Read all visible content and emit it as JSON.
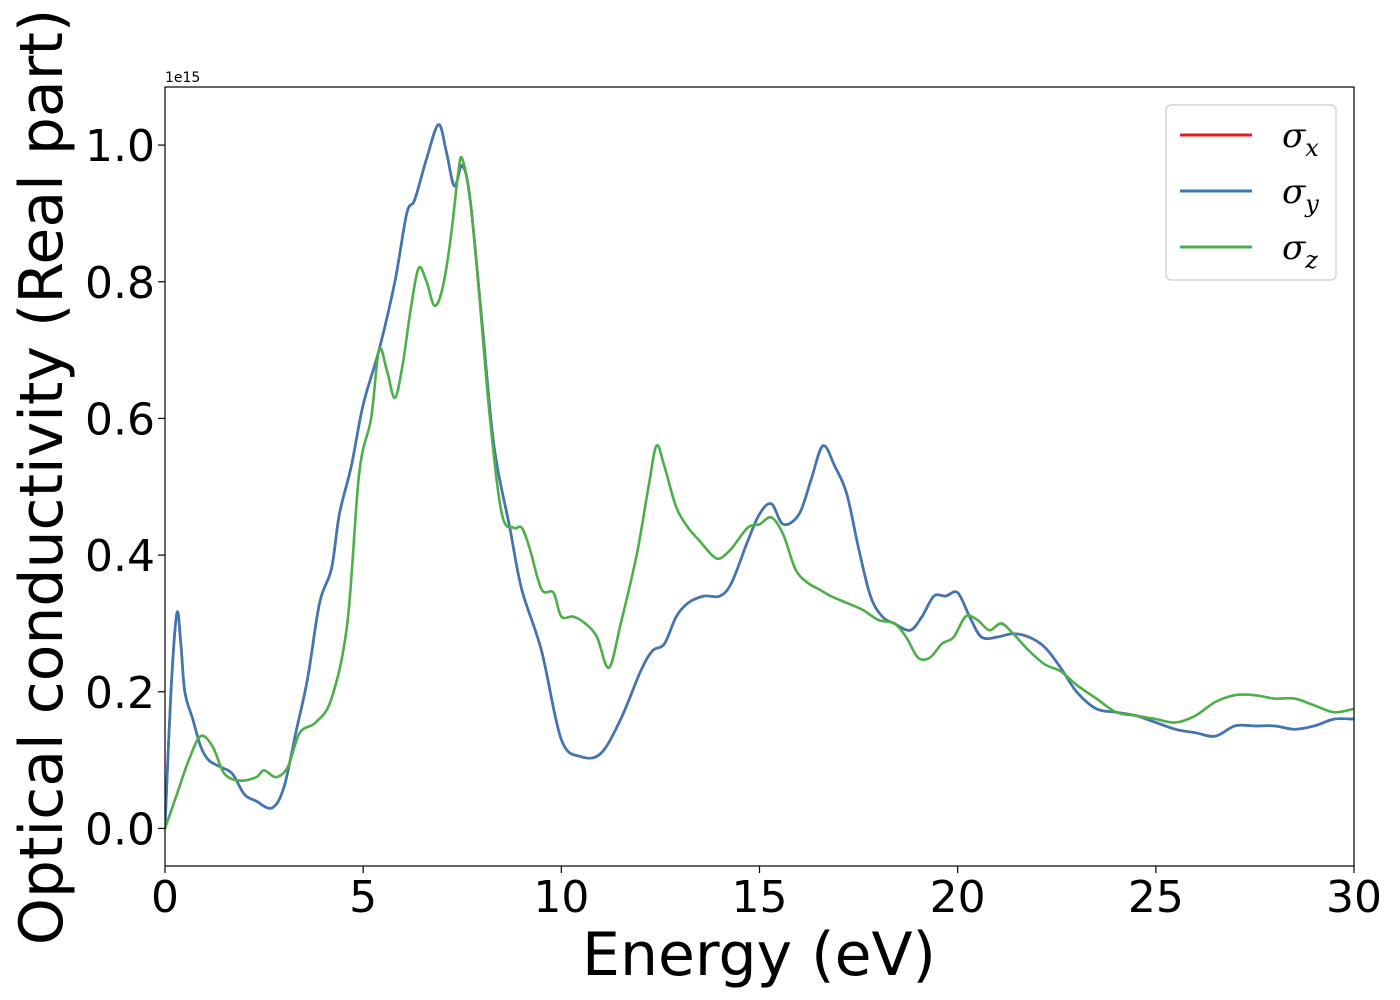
{
  "chart_data": {
    "type": "line",
    "xlabel": "Energy (eV)",
    "ylabel": "Optical conductivity (Real part)",
    "y_offset_label": "1e15",
    "xlim": [
      0,
      30
    ],
    "ylim": [
      -0.055,
      1.085
    ],
    "x_ticks": [
      0,
      5,
      10,
      15,
      20,
      25,
      30
    ],
    "x_tick_labels": [
      "0",
      "5",
      "10",
      "15",
      "20",
      "25",
      "30"
    ],
    "y_ticks": [
      0.0,
      0.2,
      0.4,
      0.6,
      0.8,
      1.0
    ],
    "y_tick_labels": [
      "0.0",
      "0.2",
      "0.4",
      "0.6",
      "0.8",
      "1.0"
    ],
    "grid": false,
    "legend_position": "top-right",
    "series": [
      {
        "name": "σx",
        "symbol": "σ",
        "subscript": "x",
        "color": "#e41a1c",
        "x": [
          0,
          0.15,
          0.3,
          0.4,
          0.5,
          0.7,
          0.9,
          1.1,
          1.4,
          1.7,
          2.0,
          2.3,
          2.7,
          3.0,
          3.3,
          3.6,
          3.9,
          4.2,
          4.4,
          4.7,
          5.0,
          5.4,
          5.8,
          6.1,
          6.3,
          6.6,
          6.9,
          7.1,
          7.3,
          7.5,
          7.7,
          8.0,
          8.3,
          8.7,
          9.0,
          9.5,
          10.0,
          10.5,
          11.0,
          11.5,
          12.0,
          12.3,
          12.6,
          12.9,
          13.2,
          13.6,
          14.0,
          14.3,
          14.7,
          15.0,
          15.3,
          15.6,
          16.0,
          16.3,
          16.6,
          16.9,
          17.2,
          17.5,
          17.8,
          18.1,
          18.4,
          18.8,
          19.1,
          19.4,
          19.7,
          20.0,
          20.3,
          20.6,
          21.0,
          21.4,
          21.8,
          22.2,
          22.6,
          23.0,
          23.5,
          24.0,
          24.5,
          25.0,
          25.5,
          26.0,
          26.5,
          27.0,
          27.5,
          28.0,
          28.5,
          29.0,
          29.5,
          30.0
        ],
        "y": [
          0.0,
          0.2,
          0.315,
          0.27,
          0.2,
          0.16,
          0.12,
          0.1,
          0.09,
          0.08,
          0.05,
          0.04,
          0.03,
          0.06,
          0.14,
          0.22,
          0.33,
          0.38,
          0.46,
          0.53,
          0.62,
          0.7,
          0.8,
          0.9,
          0.92,
          0.98,
          1.03,
          0.99,
          0.94,
          0.97,
          0.92,
          0.74,
          0.56,
          0.44,
          0.35,
          0.26,
          0.13,
          0.105,
          0.11,
          0.16,
          0.23,
          0.26,
          0.27,
          0.31,
          0.33,
          0.34,
          0.34,
          0.36,
          0.42,
          0.46,
          0.475,
          0.445,
          0.46,
          0.51,
          0.56,
          0.53,
          0.49,
          0.41,
          0.34,
          0.31,
          0.3,
          0.29,
          0.31,
          0.34,
          0.34,
          0.345,
          0.31,
          0.28,
          0.28,
          0.285,
          0.28,
          0.265,
          0.235,
          0.2,
          0.175,
          0.17,
          0.165,
          0.155,
          0.145,
          0.14,
          0.135,
          0.15,
          0.15,
          0.15,
          0.145,
          0.15,
          0.16,
          0.16
        ]
      },
      {
        "name": "σy",
        "symbol": "σ",
        "subscript": "y",
        "color": "#3c78b5",
        "x": [
          0,
          0.15,
          0.3,
          0.4,
          0.5,
          0.7,
          0.9,
          1.1,
          1.4,
          1.7,
          2.0,
          2.3,
          2.7,
          3.0,
          3.3,
          3.6,
          3.9,
          4.2,
          4.4,
          4.7,
          5.0,
          5.4,
          5.8,
          6.1,
          6.3,
          6.6,
          6.9,
          7.1,
          7.3,
          7.5,
          7.7,
          8.0,
          8.3,
          8.7,
          9.0,
          9.5,
          10.0,
          10.5,
          11.0,
          11.5,
          12.0,
          12.3,
          12.6,
          12.9,
          13.2,
          13.6,
          14.0,
          14.3,
          14.7,
          15.0,
          15.3,
          15.6,
          16.0,
          16.3,
          16.6,
          16.9,
          17.2,
          17.5,
          17.8,
          18.1,
          18.4,
          18.8,
          19.1,
          19.4,
          19.7,
          20.0,
          20.3,
          20.6,
          21.0,
          21.4,
          21.8,
          22.2,
          22.6,
          23.0,
          23.5,
          24.0,
          24.5,
          25.0,
          25.5,
          26.0,
          26.5,
          27.0,
          27.5,
          28.0,
          28.5,
          29.0,
          29.5,
          30.0
        ],
        "y": [
          0.0,
          0.2,
          0.315,
          0.27,
          0.2,
          0.16,
          0.12,
          0.1,
          0.09,
          0.08,
          0.05,
          0.04,
          0.03,
          0.06,
          0.14,
          0.22,
          0.33,
          0.38,
          0.46,
          0.53,
          0.62,
          0.7,
          0.8,
          0.9,
          0.92,
          0.98,
          1.03,
          0.99,
          0.94,
          0.97,
          0.92,
          0.74,
          0.56,
          0.44,
          0.35,
          0.26,
          0.13,
          0.105,
          0.11,
          0.16,
          0.23,
          0.26,
          0.27,
          0.31,
          0.33,
          0.34,
          0.34,
          0.36,
          0.42,
          0.46,
          0.475,
          0.445,
          0.46,
          0.51,
          0.56,
          0.53,
          0.49,
          0.41,
          0.34,
          0.31,
          0.3,
          0.29,
          0.31,
          0.34,
          0.34,
          0.345,
          0.31,
          0.28,
          0.28,
          0.285,
          0.28,
          0.265,
          0.235,
          0.2,
          0.175,
          0.17,
          0.165,
          0.155,
          0.145,
          0.14,
          0.135,
          0.15,
          0.15,
          0.15,
          0.145,
          0.15,
          0.16,
          0.16
        ]
      },
      {
        "name": "σz",
        "symbol": "σ",
        "subscript": "z",
        "color": "#4daf4a",
        "x": [
          0,
          0.3,
          0.6,
          0.9,
          1.2,
          1.5,
          1.9,
          2.3,
          2.5,
          2.8,
          3.1,
          3.4,
          3.8,
          4.2,
          4.6,
          4.9,
          5.2,
          5.4,
          5.6,
          5.8,
          6.0,
          6.2,
          6.4,
          6.6,
          6.8,
          7.0,
          7.2,
          7.4,
          7.5,
          7.7,
          7.9,
          8.2,
          8.5,
          8.8,
          9.0,
          9.2,
          9.5,
          9.8,
          10.0,
          10.3,
          10.6,
          10.9,
          11.2,
          11.5,
          11.9,
          12.2,
          12.4,
          12.6,
          12.9,
          13.2,
          13.5,
          13.8,
          14.0,
          14.3,
          14.7,
          15.0,
          15.3,
          15.6,
          15.9,
          16.2,
          16.5,
          16.8,
          17.2,
          17.6,
          18.0,
          18.4,
          18.7,
          19.0,
          19.3,
          19.6,
          19.9,
          20.2,
          20.5,
          20.8,
          21.1,
          21.4,
          21.8,
          22.2,
          22.6,
          23.0,
          23.5,
          24.0,
          24.5,
          25.0,
          25.5,
          26.0,
          26.5,
          27.0,
          27.5,
          28.0,
          28.5,
          29.0,
          29.5,
          30.0
        ],
        "y": [
          0.0,
          0.05,
          0.1,
          0.135,
          0.12,
          0.08,
          0.07,
          0.075,
          0.085,
          0.075,
          0.09,
          0.14,
          0.155,
          0.19,
          0.3,
          0.52,
          0.6,
          0.7,
          0.67,
          0.63,
          0.68,
          0.76,
          0.82,
          0.8,
          0.765,
          0.79,
          0.86,
          0.96,
          0.98,
          0.92,
          0.8,
          0.6,
          0.46,
          0.44,
          0.44,
          0.41,
          0.35,
          0.345,
          0.31,
          0.31,
          0.3,
          0.28,
          0.235,
          0.3,
          0.4,
          0.5,
          0.56,
          0.53,
          0.47,
          0.44,
          0.42,
          0.4,
          0.395,
          0.41,
          0.44,
          0.445,
          0.455,
          0.43,
          0.38,
          0.36,
          0.35,
          0.34,
          0.33,
          0.32,
          0.305,
          0.3,
          0.28,
          0.25,
          0.25,
          0.27,
          0.28,
          0.31,
          0.305,
          0.29,
          0.3,
          0.285,
          0.26,
          0.24,
          0.23,
          0.21,
          0.19,
          0.17,
          0.165,
          0.16,
          0.155,
          0.165,
          0.185,
          0.195,
          0.195,
          0.19,
          0.19,
          0.18,
          0.17,
          0.175
        ]
      }
    ]
  }
}
